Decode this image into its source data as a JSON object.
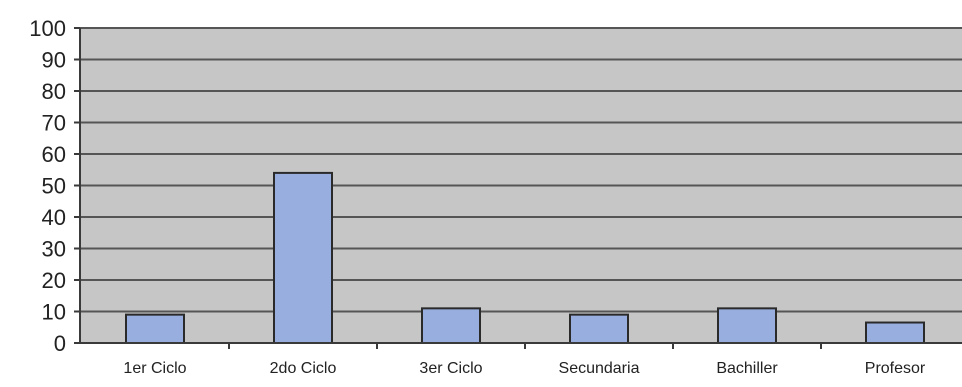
{
  "colors": {
    "bar_fill": "#98aede",
    "bar_stroke": "#2a2a2a",
    "plot_background": "#c6c6c6",
    "gridline": "#555555",
    "axis": "#3a3a3a"
  },
  "chart_data": {
    "type": "bar",
    "categories": [
      "1er Ciclo",
      "2do Ciclo",
      "3er Ciclo",
      "Secundaria",
      "Bachiller",
      "Profesor"
    ],
    "values": [
      9,
      54,
      11,
      9,
      11,
      6.5
    ],
    "title": "",
    "xlabel": "",
    "ylabel": "",
    "ylim": [
      0,
      100
    ],
    "yticks": [
      "0",
      "10",
      "20",
      "30",
      "40",
      "50",
      "60",
      "70",
      "80",
      "90",
      "100"
    ],
    "grid": true,
    "legend": "none"
  }
}
